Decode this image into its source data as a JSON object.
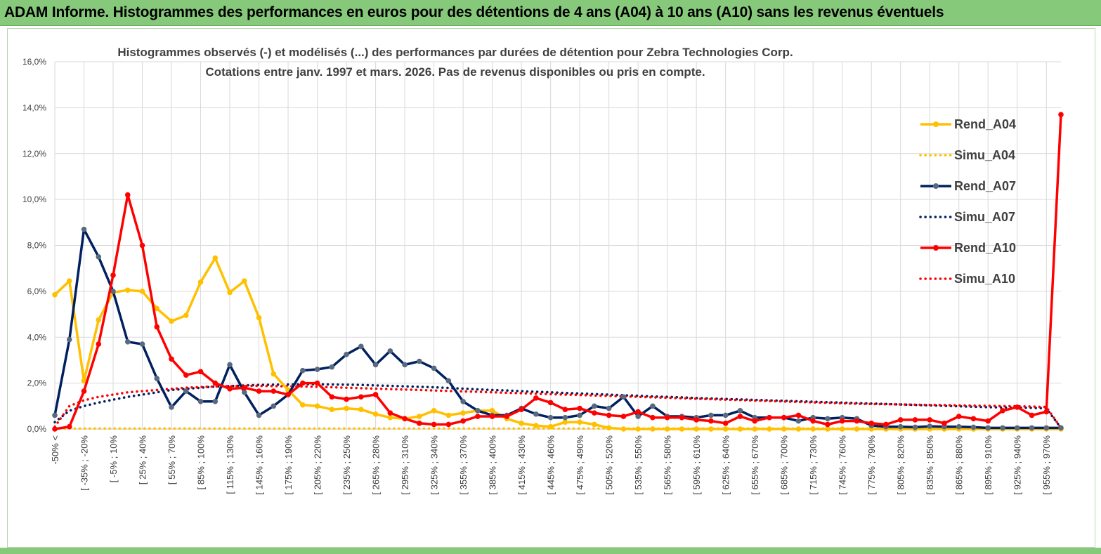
{
  "banner": {
    "title": "ADAM Informe. Histogrammes des performances en euros pour des détentions de 4 ans (A04) à 10 ans (A10) sans les revenus éventuels"
  },
  "colors": {
    "banner_bg": "#86c97a",
    "A04": "#ffc000",
    "A07": "#002060",
    "A07_marker": "#5a6a7e",
    "A10": "#ff0000",
    "grid": "#d9d9d9"
  },
  "chart_data": {
    "type": "line",
    "title": "Histogrammes observés (-) et modélisés (...) des performances par durées de détention pour Zebra Technologies Corp.",
    "subtitle": "Cotations entre janv. 1997 et mars. 2026.  Pas de revenus disponibles ou pris en compte.",
    "ylim": [
      0,
      16
    ],
    "yticks": [
      "0,0%",
      "2,0%",
      "4,0%",
      "6,0%",
      "8,0%",
      "10,0%",
      "12,0%",
      "14,0%",
      "16,0%"
    ],
    "x_count": 70,
    "x_tick_labels": [
      "-50% <",
      "[ -35% ; -20%",
      "[ -5% ; 10%",
      "[ 25% ; 40%",
      "[ 55% ; 70%",
      "[ 85% ; 100%",
      "[ 115% ; 130%",
      "[ 145% ; 160%",
      "[ 175% ; 190%",
      "[ 205% ; 220%",
      "[ 235% ; 250%",
      "[ 265% ; 280%",
      "[ 295% ; 310%",
      "[ 325% ; 340%",
      "[ 355% ; 370%",
      "[ 385% ; 400%",
      "[ 415% ; 430%",
      "[ 445% ; 460%",
      "[ 475% ; 490%",
      "[ 505% ; 520%",
      "[ 535% ; 550%",
      "[ 565% ; 580%",
      "[ 595% ; 610%",
      "[ 625% ; 640%",
      "[ 655% ; 670%",
      "[ 685% ; 700%",
      "[ 715% ; 730%",
      "[ 745% ; 760%",
      "[ 775% ; 790%",
      "[ 805% ; 820%",
      "[ 835% ; 850%",
      "[ 865% ; 880%",
      "[ 895% ; 910%",
      "[ 925% ; 940%",
      "[ 955% ; 970%"
    ],
    "x_tick_positions": [
      0,
      2,
      4,
      6,
      8,
      10,
      12,
      14,
      16,
      18,
      20,
      22,
      24,
      26,
      28,
      30,
      32,
      34,
      36,
      38,
      40,
      42,
      44,
      46,
      48,
      50,
      52,
      54,
      56,
      58,
      60,
      62,
      64,
      66,
      68
    ],
    "legend_position": "right",
    "series": [
      {
        "name": "Rend_A04",
        "style": "solid",
        "color": "#ffc000",
        "values": [
          5.85,
          6.45,
          2.1,
          4.75,
          5.95,
          6.05,
          6.0,
          5.25,
          4.7,
          4.95,
          6.4,
          7.45,
          5.95,
          6.45,
          4.85,
          2.4,
          1.7,
          1.05,
          1.0,
          0.85,
          0.9,
          0.85,
          0.65,
          0.5,
          0.45,
          0.55,
          0.8,
          0.6,
          0.7,
          0.8,
          0.8,
          0.45,
          0.25,
          0.15,
          0.1,
          0.3,
          0.3,
          0.2,
          0.05,
          0.0,
          0.0,
          0.0,
          0.0,
          0.0,
          0.0,
          0.0,
          0.0,
          0.0,
          0.0,
          0.0,
          0.0,
          0.0,
          0.0,
          0.0,
          0.0,
          0.0,
          0.0,
          0.0,
          0.0,
          0.0,
          0.0,
          0.0,
          0.0,
          0.0,
          0.0,
          0.0,
          0.0,
          0.0,
          0.0,
          0.0
        ]
      },
      {
        "name": "Simu_A04",
        "style": "dotted",
        "color": "#ffc000",
        "values": [
          0.02,
          0.02,
          0.02,
          0.02,
          0.02,
          0.02,
          0.02,
          0.02,
          0.02,
          0.02,
          0.02,
          0.02,
          0.02,
          0.02,
          0.02,
          0.02,
          0.02,
          0.02,
          0.02,
          0.02,
          0.02,
          0.02,
          0.02,
          0.02,
          0.02,
          0.02,
          0.02,
          0.02,
          0.02,
          0.02,
          0.02,
          0.02,
          0.02,
          0.02,
          0.02,
          0.02,
          0.02,
          0.02,
          0.02,
          0.02,
          0.02,
          0.02,
          0.02,
          0.02,
          0.02,
          0.02,
          0.02,
          0.02,
          0.02,
          0.02,
          0.02,
          0.02,
          0.02,
          0.02,
          0.02,
          0.02,
          0.02,
          0.02,
          0.02,
          0.02,
          0.02,
          0.02,
          0.02,
          0.02,
          0.02,
          0.02,
          0.02,
          0.02,
          0.02,
          0.02
        ]
      },
      {
        "name": "Rend_A07",
        "style": "solid",
        "color": "#002060",
        "values": [
          0.6,
          3.9,
          8.7,
          7.5,
          6.0,
          3.8,
          3.7,
          2.2,
          0.95,
          1.65,
          1.2,
          1.2,
          2.8,
          1.6,
          0.6,
          1.0,
          1.5,
          2.55,
          2.6,
          2.7,
          3.25,
          3.6,
          2.8,
          3.4,
          2.8,
          2.95,
          2.65,
          2.1,
          1.2,
          0.8,
          0.6,
          0.6,
          0.9,
          0.65,
          0.5,
          0.5,
          0.6,
          1.0,
          0.9,
          1.4,
          0.55,
          1.0,
          0.55,
          0.55,
          0.5,
          0.6,
          0.6,
          0.8,
          0.5,
          0.5,
          0.5,
          0.35,
          0.5,
          0.45,
          0.5,
          0.45,
          0.15,
          0.1,
          0.1,
          0.08,
          0.12,
          0.1,
          0.1,
          0.08,
          0.05,
          0.05,
          0.05,
          0.05,
          0.05,
          0.05
        ]
      },
      {
        "name": "Simu_A07",
        "style": "dotted",
        "color": "#002060",
        "values": [
          0.3,
          0.8,
          1.0,
          1.15,
          1.28,
          1.4,
          1.5,
          1.6,
          1.7,
          1.75,
          1.8,
          1.85,
          1.87,
          1.9,
          1.92,
          1.93,
          1.94,
          1.95,
          1.95,
          1.94,
          1.93,
          1.92,
          1.9,
          1.88,
          1.86,
          1.84,
          1.82,
          1.79,
          1.76,
          1.73,
          1.7,
          1.68,
          1.65,
          1.62,
          1.6,
          1.57,
          1.55,
          1.52,
          1.5,
          1.47,
          1.45,
          1.42,
          1.4,
          1.38,
          1.35,
          1.33,
          1.31,
          1.29,
          1.27,
          1.25,
          1.23,
          1.21,
          1.19,
          1.17,
          1.15,
          1.13,
          1.11,
          1.09,
          1.07,
          1.05,
          1.03,
          1.01,
          0.99,
          0.97,
          0.95,
          0.94,
          0.93,
          0.92,
          0.9,
          0.05
        ]
      },
      {
        "name": "Rend_A10",
        "style": "solid",
        "color": "#ff0000",
        "values": [
          0.0,
          0.1,
          1.65,
          3.7,
          6.7,
          10.2,
          8.0,
          4.45,
          3.05,
          2.35,
          2.5,
          2.0,
          1.75,
          1.8,
          1.65,
          1.65,
          1.5,
          2.0,
          2.0,
          1.4,
          1.3,
          1.4,
          1.5,
          0.7,
          0.45,
          0.25,
          0.2,
          0.2,
          0.35,
          0.55,
          0.55,
          0.55,
          0.85,
          1.35,
          1.15,
          0.85,
          0.9,
          0.7,
          0.6,
          0.55,
          0.75,
          0.5,
          0.5,
          0.5,
          0.4,
          0.35,
          0.25,
          0.55,
          0.35,
          0.5,
          0.5,
          0.6,
          0.35,
          0.2,
          0.35,
          0.35,
          0.25,
          0.2,
          0.4,
          0.4,
          0.4,
          0.25,
          0.55,
          0.45,
          0.35,
          0.8,
          0.95,
          0.6,
          0.75,
          13.7
        ]
      },
      {
        "name": "Simu_A10",
        "style": "dotted",
        "color": "#ff0000",
        "values": [
          0.1,
          1.0,
          1.25,
          1.4,
          1.5,
          1.6,
          1.65,
          1.7,
          1.75,
          1.8,
          1.83,
          1.85,
          1.87,
          1.88,
          1.88,
          1.87,
          1.86,
          1.85,
          1.84,
          1.82,
          1.8,
          1.78,
          1.76,
          1.74,
          1.72,
          1.7,
          1.68,
          1.66,
          1.64,
          1.62,
          1.6,
          1.58,
          1.56,
          1.54,
          1.52,
          1.5,
          1.48,
          1.46,
          1.44,
          1.42,
          1.4,
          1.38,
          1.36,
          1.34,
          1.32,
          1.3,
          1.28,
          1.26,
          1.24,
          1.22,
          1.2,
          1.18,
          1.16,
          1.14,
          1.12,
          1.1,
          1.09,
          1.08,
          1.07,
          1.06,
          1.05,
          1.04,
          1.03,
          1.02,
          1.01,
          1.0,
          0.99,
          0.98,
          0.96,
          0.05
        ]
      }
    ]
  }
}
